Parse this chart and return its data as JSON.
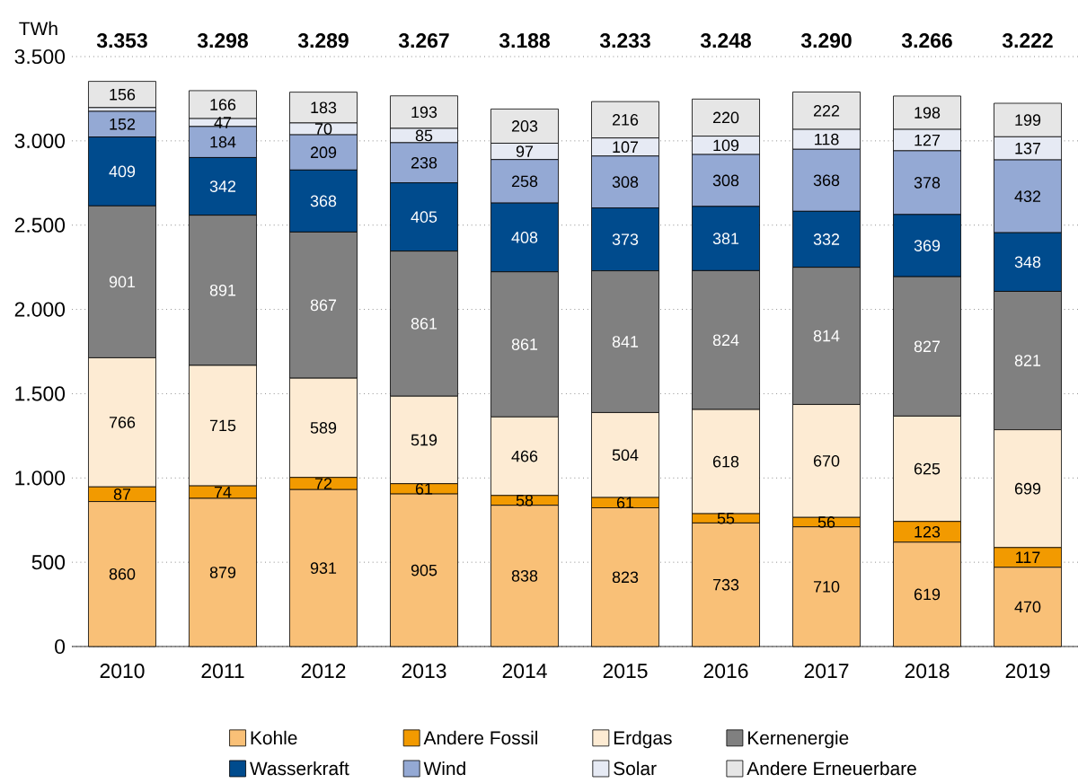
{
  "chart_data": {
    "type": "bar",
    "stacked": true,
    "ylabel": "TWh",
    "categories": [
      "2010",
      "2011",
      "2012",
      "2013",
      "2014",
      "2015",
      "2016",
      "2017",
      "2018",
      "2019"
    ],
    "series": [
      {
        "name": "Kohle",
        "color": "#f9c077",
        "values": [
          860,
          879,
          931,
          905,
          838,
          823,
          733,
          710,
          619,
          470
        ],
        "value_labels": [
          "860",
          "879",
          "931",
          "905",
          "838",
          "823",
          "733",
          "710",
          "619",
          "470"
        ]
      },
      {
        "name": "Andere Fossil",
        "color": "#f29a00",
        "values": [
          87,
          74,
          72,
          61,
          58,
          61,
          55,
          56,
          123,
          117
        ],
        "value_labels": [
          "87",
          "74",
          "72",
          "61",
          "58",
          "61",
          "55",
          "56",
          "123",
          "117"
        ]
      },
      {
        "name": "Erdgas",
        "color": "#fdebd3",
        "values": [
          766,
          715,
          589,
          519,
          466,
          504,
          618,
          670,
          625,
          699
        ],
        "value_labels": [
          "766",
          "715",
          "589",
          "519",
          "466",
          "504",
          "618",
          "670",
          "625",
          "699"
        ]
      },
      {
        "name": "Kernenergie",
        "color": "#808080",
        "values": [
          901,
          891,
          867,
          861,
          861,
          841,
          824,
          814,
          827,
          821
        ],
        "value_labels": [
          "901",
          "891",
          "867",
          "861",
          "861",
          "841",
          "824",
          "814",
          "827",
          "821"
        ]
      },
      {
        "name": "Wasserkraft",
        "color": "#004b8d",
        "values": [
          409,
          342,
          368,
          405,
          408,
          373,
          381,
          332,
          369,
          348
        ],
        "value_labels": [
          "409",
          "342",
          "368",
          "405",
          "408",
          "373",
          "381",
          "332",
          "369",
          "348"
        ]
      },
      {
        "name": "Wind",
        "color": "#94a9d4",
        "values": [
          152,
          184,
          209,
          238,
          258,
          308,
          308,
          368,
          378,
          432
        ],
        "value_labels": [
          "152",
          "184",
          "209",
          "238",
          "258",
          "308",
          "308",
          "368",
          "378",
          "432"
        ]
      },
      {
        "name": "Solar",
        "color": "#e6eaf4",
        "values": [
          22,
          47,
          70,
          85,
          97,
          107,
          109,
          118,
          127,
          137
        ],
        "value_labels": [
          null,
          "47",
          "70",
          "85",
          "97",
          "107",
          "109",
          "118",
          "127",
          "137"
        ]
      },
      {
        "name": "Andere Erneuerbare",
        "color": "#e6e6e6",
        "values": [
          156,
          166,
          183,
          193,
          203,
          216,
          220,
          222,
          198,
          199
        ],
        "value_labels": [
          "156",
          "166",
          "183",
          "193",
          "203",
          "216",
          "220",
          "222",
          "198",
          "199"
        ]
      }
    ],
    "totals": [
      "3.353",
      "3.298",
      "3.289",
      "3.267",
      "3.188",
      "3.233",
      "3.248",
      "3.290",
      "3.266",
      "3.222"
    ],
    "ylim": [
      0,
      3500
    ],
    "yticks": [
      0,
      500,
      {
        "value": 1000,
        "label": "1.000"
      },
      {
        "value": 1500,
        "label": "1.500"
      },
      {
        "value": 2000,
        "label": "2.000"
      },
      {
        "value": 2500,
        "label": "2.500"
      },
      {
        "value": 3000,
        "label": "3.000"
      },
      {
        "value": 3500,
        "label": "3.500"
      }
    ],
    "grid": "y",
    "legend": "bottom"
  }
}
